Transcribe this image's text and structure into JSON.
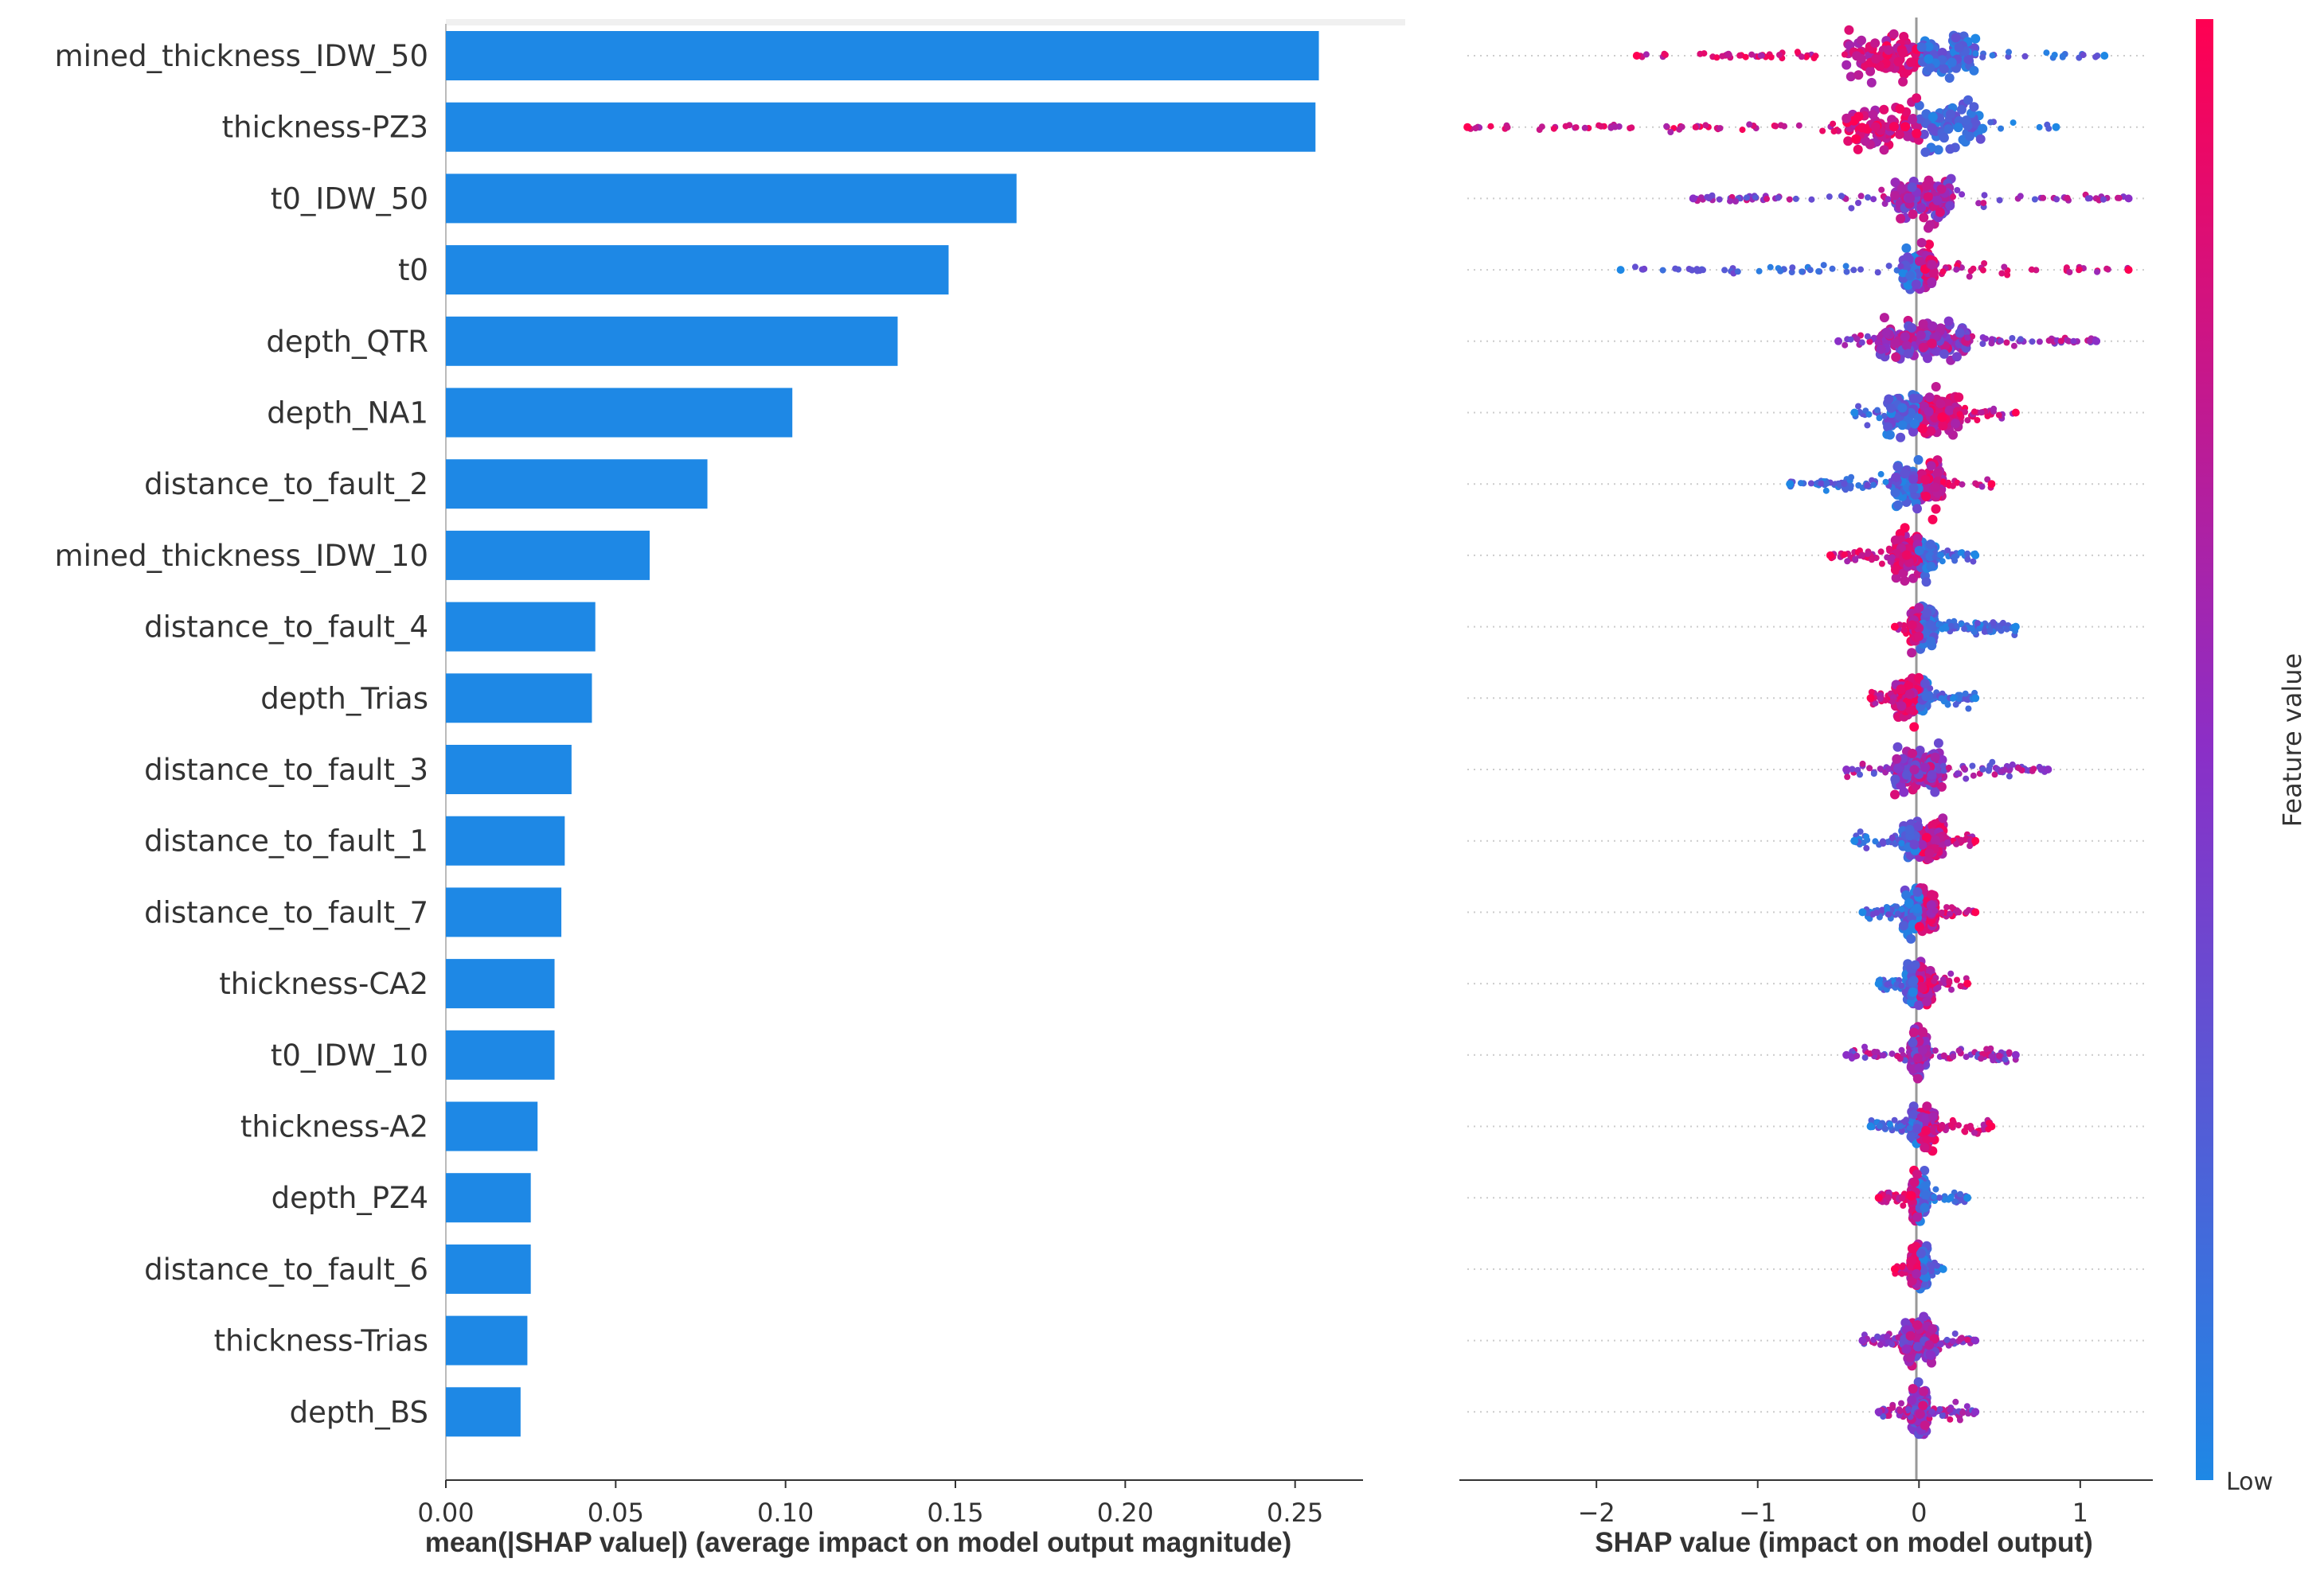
{
  "chart_data": [
    {
      "type": "bar",
      "orientation": "horizontal",
      "categories": [
        "mined_thickness_IDW_50",
        "thickness-PZ3",
        "t0_IDW_50",
        "t0",
        "depth_QTR",
        "depth_NA1",
        "distance_to_fault_2",
        "mined_thickness_IDW_10",
        "distance_to_fault_4",
        "depth_Trias",
        "distance_to_fault_3",
        "distance_to_fault_1",
        "distance_to_fault_7",
        "thickness-CA2",
        "t0_IDW_10",
        "thickness-A2",
        "depth_PZ4",
        "distance_to_fault_6",
        "thickness-Trias",
        "depth_BS"
      ],
      "values": [
        0.257,
        0.256,
        0.168,
        0.148,
        0.133,
        0.102,
        0.077,
        0.06,
        0.044,
        0.043,
        0.037,
        0.035,
        0.034,
        0.032,
        0.032,
        0.027,
        0.025,
        0.025,
        0.024,
        0.022
      ],
      "xlim": [
        0,
        0.27
      ],
      "xticks": [
        "0.00",
        "0.05",
        "0.10",
        "0.15",
        "0.20",
        "0.25"
      ],
      "xlabel": "mean(|SHAP value|) (average impact on model output magnitude)",
      "color": "#1e88e5"
    },
    {
      "type": "scatter",
      "subtype": "beeswarm",
      "xlim": [
        -2.85,
        1.45
      ],
      "xticks": [
        -2,
        -1,
        0,
        1
      ],
      "xtick_labels": [
        "−2",
        "−1",
        "0",
        "1"
      ],
      "xlabel": "SHAP value (impact on model output)",
      "features": [
        {
          "name": "mined_thickness_IDW_50",
          "min": -1.75,
          "max": 1.15,
          "core": [
            -0.45,
            0.35
          ],
          "high_side": "neg"
        },
        {
          "name": "thickness-PZ3",
          "min": -2.8,
          "max": 0.85,
          "core": [
            -0.45,
            0.4
          ],
          "high_side": "neg"
        },
        {
          "name": "t0_IDW_50",
          "min": -1.4,
          "max": 1.3,
          "core": [
            -0.15,
            0.2
          ],
          "high_side": "mid"
        },
        {
          "name": "t0",
          "min": -1.85,
          "max": 1.3,
          "core": [
            -0.1,
            0.1
          ],
          "high_side": "pos"
        },
        {
          "name": "depth_QTR",
          "min": -0.5,
          "max": 1.1,
          "core": [
            -0.25,
            0.3
          ],
          "high_side": "mid"
        },
        {
          "name": "depth_NA1",
          "min": -0.4,
          "max": 0.6,
          "core": [
            -0.2,
            0.25
          ],
          "high_side": "pos"
        },
        {
          "name": "distance_to_fault_2",
          "min": -0.8,
          "max": 0.45,
          "core": [
            -0.15,
            0.15
          ],
          "high_side": "pos"
        },
        {
          "name": "mined_thickness_IDW_10",
          "min": -0.55,
          "max": 0.35,
          "core": [
            -0.15,
            0.1
          ],
          "high_side": "neg"
        },
        {
          "name": "distance_to_fault_4",
          "min": -0.15,
          "max": 0.6,
          "core": [
            -0.05,
            0.1
          ],
          "high_side": "neg"
        },
        {
          "name": "depth_Trias",
          "min": -0.3,
          "max": 0.35,
          "core": [
            -0.15,
            0.05
          ],
          "high_side": "neg"
        },
        {
          "name": "distance_to_fault_3",
          "min": -0.45,
          "max": 0.8,
          "core": [
            -0.15,
            0.15
          ],
          "high_side": "mid"
        },
        {
          "name": "distance_to_fault_1",
          "min": -0.4,
          "max": 0.35,
          "core": [
            -0.1,
            0.15
          ],
          "high_side": "pos"
        },
        {
          "name": "distance_to_fault_7",
          "min": -0.35,
          "max": 0.35,
          "core": [
            -0.1,
            0.1
          ],
          "high_side": "pos"
        },
        {
          "name": "thickness-CA2",
          "min": -0.25,
          "max": 0.3,
          "core": [
            -0.08,
            0.08
          ],
          "high_side": "pos"
        },
        {
          "name": "t0_IDW_10",
          "min": -0.45,
          "max": 0.6,
          "core": [
            -0.05,
            0.05
          ],
          "high_side": "mid"
        },
        {
          "name": "thickness-A2",
          "min": -0.3,
          "max": 0.45,
          "core": [
            -0.05,
            0.1
          ],
          "high_side": "pos"
        },
        {
          "name": "depth_PZ4",
          "min": -0.25,
          "max": 0.3,
          "core": [
            -0.05,
            0.05
          ],
          "high_side": "neg"
        },
        {
          "name": "distance_to_fault_6",
          "min": -0.15,
          "max": 0.15,
          "core": [
            -0.05,
            0.05
          ],
          "high_side": "neg"
        },
        {
          "name": "thickness-Trias",
          "min": -0.35,
          "max": 0.35,
          "core": [
            -0.1,
            0.1
          ],
          "high_side": "mid"
        },
        {
          "name": "depth_BS",
          "min": -0.25,
          "max": 0.35,
          "core": [
            -0.05,
            0.05
          ],
          "high_side": "mid"
        }
      ],
      "colorbar": {
        "label": "Feature value",
        "low_label": "Low",
        "low_color": "#1e88e5",
        "high_color": "#ff0052",
        "mid_color": "#8b2fc7"
      }
    }
  ]
}
